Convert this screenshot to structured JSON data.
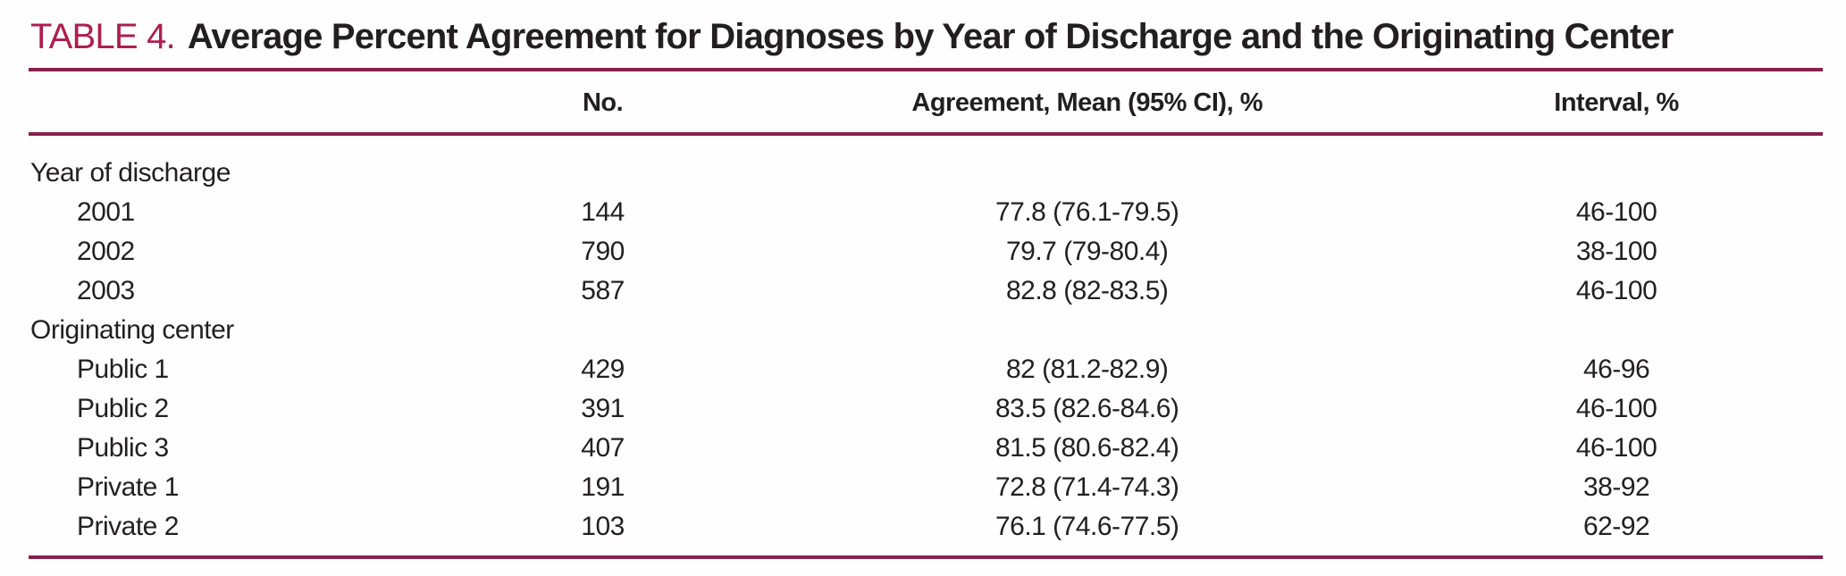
{
  "title": {
    "label": "TABLE 4.",
    "text": "Average Percent Agreement for Diagnoses by Year of Discharge and the Originating Center"
  },
  "table": {
    "columns": [
      "",
      "No.",
      "Agreement, Mean (95% CI), %",
      "Interval, %"
    ],
    "groups": [
      {
        "label": "Year of discharge",
        "rows": [
          {
            "label": "2001",
            "no": "144",
            "agreement": "77.8 (76.1-79.5)",
            "interval": "46-100"
          },
          {
            "label": "2002",
            "no": "790",
            "agreement": "79.7 (79-80.4)",
            "interval": "38-100"
          },
          {
            "label": "2003",
            "no": "587",
            "agreement": "82.8 (82-83.5)",
            "interval": "46-100"
          }
        ]
      },
      {
        "label": "Originating center",
        "rows": [
          {
            "label": "Public 1",
            "no": "429",
            "agreement": "82 (81.2-82.9)",
            "interval": "46-96"
          },
          {
            "label": "Public 2",
            "no": "391",
            "agreement": "83.5 (82.6-84.6)",
            "interval": "46-100"
          },
          {
            "label": "Public 3",
            "no": "407",
            "agreement": "81.5 (80.6-82.4)",
            "interval": "46-100"
          },
          {
            "label": "Private 1",
            "no": "191",
            "agreement": "72.8 (71.4-74.3)",
            "interval": "38-92"
          },
          {
            "label": "Private 2",
            "no": "103",
            "agreement": "76.1 (74.6-77.5)",
            "interval": "62-92"
          }
        ]
      }
    ]
  },
  "colors": {
    "accent_red": "#ae1e4e",
    "rule_maroon": "#87214e",
    "text": "#231f20",
    "background": "#fefefe"
  }
}
